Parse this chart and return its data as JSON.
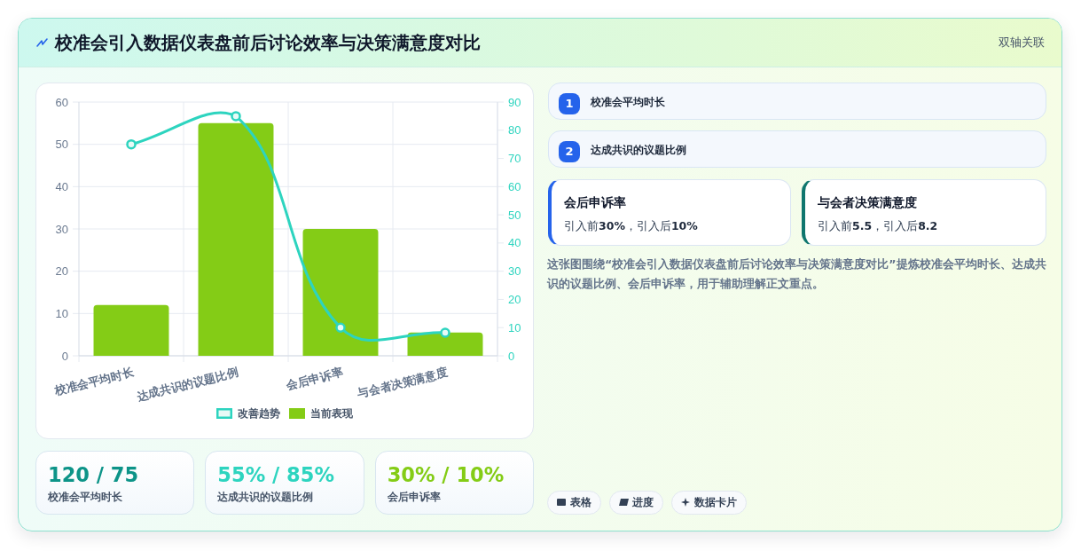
{
  "chart_data": [
    {
      "type": "bar",
      "title": "校准会引入数据仪表盘前后讨论效率与决策满意度对比",
      "annotations": [
        "双轴关联"
      ],
      "categories": [
        "校准会平均时长",
        "达成共识的议题比例",
        "会后申诉率",
        "与会者决策满意度"
      ],
      "series": [
        {
          "name": "改善趋势",
          "type": "line",
          "axis": "y2",
          "color": "#2dd4bf",
          "values": [
            75,
            85,
            10,
            8.2
          ]
        },
        {
          "name": "当前表现",
          "type": "bar",
          "color": "#84cc16",
          "values": [
            12,
            55,
            30,
            5.5
          ]
        }
      ],
      "ylim": [
        0,
        60
      ],
      "yticks": [
        0,
        10,
        20,
        30,
        40,
        50,
        60
      ],
      "y2lim": [
        0,
        90
      ],
      "y2ticks": [
        0,
        10,
        20,
        30,
        40,
        50,
        60,
        70,
        80,
        90
      ],
      "grid": true,
      "legend": "bottom",
      "marker": "circle"
    },
    {
      "type": "other",
      "annotations": [
        "120 / 75",
        "校准会平均时长",
        "55% / 85%",
        "达成共识的议题比例",
        "30% / 10%",
        "会后申诉率"
      ]
    },
    {
      "type": "other",
      "annotations": [
        "1",
        "校准会平均时长",
        "2",
        "达成共识的议题比例",
        "会后申诉率",
        "引入前30%，引入后10%",
        "与会者决策满意度",
        "引入前5.5，引入后8.2",
        "这张图围绕“校准会引入数据仪表盘前后讨论效率与决策满意度对比”提炼校准会平均时长、达成共识的议题比例、会后申诉率，用于辅助理解正文重点。",
        "表格",
        "进度",
        "数据卡片"
      ]
    }
  ]
}
